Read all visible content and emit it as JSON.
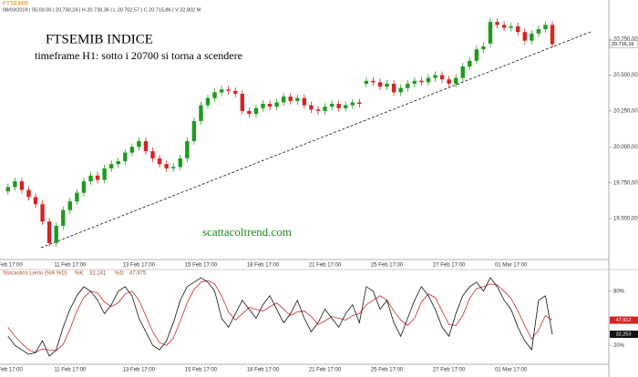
{
  "header": {
    "symbol": "FTSEMIB",
    "info": "08/03/2019 | 05:00.00 | 20.730,24 | H 20.738,36 | L 20.702,57 | C 20.715,86 | V 32,802 M"
  },
  "chart_data": [
    {
      "type": "candlestick",
      "title": "FTSEMIB INDICE",
      "subtitle": "timeframe H1: sotto i 20700 si torna a scendere",
      "watermark": "scattacoltrend.com",
      "categories": [
        "8 Feb 17:00",
        null,
        null,
        null,
        null,
        null,
        null,
        null,
        null,
        "11 Feb 17:00",
        null,
        null,
        null,
        null,
        null,
        null,
        null,
        null,
        null,
        "13 Feb 17:00",
        null,
        null,
        null,
        null,
        null,
        null,
        null,
        null,
        "15 Feb 17:00",
        null,
        null,
        null,
        null,
        null,
        null,
        null,
        null,
        "18 Feb 17:00",
        null,
        null,
        null,
        null,
        null,
        null,
        null,
        null,
        "21 Feb 17:00",
        null,
        null,
        null,
        null,
        null,
        null,
        null,
        null,
        "25 Feb 17:00",
        null,
        null,
        null,
        null,
        null,
        null,
        null,
        null,
        "27 Feb 17:00",
        null,
        null,
        null,
        null,
        null,
        null,
        null,
        null,
        "01 Mar 17:00",
        null,
        null,
        null,
        null,
        null,
        null
      ],
      "open": [
        19690,
        19720,
        19760,
        19700,
        19650,
        19600,
        19480,
        19330,
        19450,
        19560,
        19620,
        19680,
        19760,
        19800,
        19770,
        19850,
        19880,
        19900,
        19960,
        20000,
        20040,
        19970,
        19920,
        19880,
        19850,
        19860,
        19920,
        20040,
        20180,
        20290,
        20340,
        20380,
        20400,
        20390,
        20370,
        20250,
        20230,
        20270,
        20300,
        20280,
        20310,
        20350,
        20320,
        20340,
        20290,
        20260,
        20250,
        20280,
        20300,
        20270,
        20290,
        20310,
        20440,
        20460,
        20450,
        20420,
        20440,
        20380,
        20410,
        20440,
        20460,
        20450,
        20480,
        20500,
        20470,
        20440,
        20480,
        20560,
        20600,
        20680,
        20720,
        20870,
        20850,
        20830,
        20840,
        20800,
        20740,
        20790,
        20820,
        20850
      ],
      "high": [
        19745,
        19785,
        19785,
        19725,
        19675,
        19625,
        19505,
        19475,
        19585,
        19645,
        19705,
        19785,
        19825,
        19825,
        19875,
        19905,
        19925,
        19985,
        20025,
        20065,
        20065,
        19995,
        19945,
        19905,
        19885,
        19945,
        20065,
        20205,
        20315,
        20365,
        20405,
        20425,
        20425,
        20415,
        20395,
        20275,
        20295,
        20325,
        20325,
        20335,
        20375,
        20375,
        20365,
        20365,
        20315,
        20285,
        20305,
        20325,
        20325,
        20315,
        20335,
        20335,
        20485,
        20485,
        20475,
        20465,
        20465,
        20435,
        20465,
        20485,
        20485,
        20505,
        20525,
        20525,
        20495,
        20505,
        20585,
        20625,
        20705,
        20725,
        20895,
        20895,
        20875,
        20865,
        20865,
        20825,
        20815,
        20845,
        20875,
        20875
      ],
      "low": [
        19665,
        19695,
        19675,
        19625,
        19575,
        19455,
        19305,
        19305,
        19425,
        19535,
        19595,
        19655,
        19735,
        19745,
        19745,
        19825,
        19855,
        19875,
        19935,
        19975,
        19945,
        19895,
        19855,
        19825,
        19825,
        19835,
        19895,
        20015,
        20155,
        20265,
        20315,
        20355,
        20365,
        20345,
        20225,
        20205,
        20205,
        20245,
        20255,
        20255,
        20285,
        20295,
        20295,
        20265,
        20235,
        20225,
        20225,
        20255,
        20245,
        20245,
        20265,
        20275,
        20415,
        20425,
        20395,
        20395,
        20355,
        20355,
        20385,
        20415,
        20425,
        20425,
        20455,
        20445,
        20415,
        20415,
        20455,
        20535,
        20575,
        20655,
        20695,
        20825,
        20805,
        20805,
        20775,
        20715,
        20715,
        20765,
        20795,
        20691
      ],
      "close": [
        19720,
        19760,
        19700,
        19650,
        19600,
        19480,
        19330,
        19450,
        19560,
        19620,
        19680,
        19760,
        19800,
        19770,
        19850,
        19880,
        19900,
        19960,
        20000,
        20040,
        19970,
        19920,
        19880,
        19850,
        19860,
        19920,
        20040,
        20180,
        20290,
        20340,
        20380,
        20400,
        20390,
        20370,
        20250,
        20230,
        20270,
        20300,
        20280,
        20310,
        20350,
        20320,
        20340,
        20290,
        20260,
        20250,
        20280,
        20300,
        20270,
        20290,
        20310,
        20300,
        20460,
        20450,
        20420,
        20440,
        20380,
        20410,
        20440,
        20460,
        20450,
        20480,
        20500,
        20470,
        20440,
        20480,
        20560,
        20600,
        20680,
        20700,
        20870,
        20850,
        20830,
        20840,
        20800,
        20740,
        20790,
        20820,
        20850,
        20716
      ],
      "up_color": "#1f9a1f",
      "down_color": "#d42424",
      "ylim": [
        19215,
        20960
      ],
      "yticks": [
        {
          "value": 19500,
          "label": "19.500,00"
        },
        {
          "value": 19750,
          "label": "19.750,00"
        },
        {
          "value": 20000,
          "label": "20.000,00"
        },
        {
          "value": 20250,
          "label": "20.250,00"
        },
        {
          "value": 20500,
          "label": "20.500,00"
        },
        {
          "value": 20750,
          "label": "20.750,00"
        }
      ],
      "last_price": {
        "value": 20716.16,
        "label": "20.716,16"
      }
    },
    {
      "type": "line",
      "title": "Stocastico Lento (%K %D)",
      "series": [
        {
          "name": "%K",
          "legend_value": "32,141",
          "color": "#111111",
          "last": {
            "value": 32.253,
            "label": "32,253"
          },
          "values": [
            30,
            20,
            15,
            10,
            12,
            25,
            8,
            15,
            40,
            60,
            75,
            85,
            80,
            70,
            55,
            65,
            80,
            85,
            75,
            50,
            35,
            20,
            15,
            25,
            45,
            70,
            85,
            90,
            95,
            90,
            80,
            50,
            40,
            55,
            70,
            60,
            50,
            65,
            75,
            60,
            45,
            55,
            70,
            50,
            35,
            45,
            60,
            50,
            40,
            55,
            65,
            45,
            85,
            80,
            60,
            70,
            45,
            30,
            50,
            70,
            85,
            75,
            60,
            40,
            30,
            55,
            75,
            85,
            90,
            80,
            95,
            85,
            70,
            60,
            40,
            25,
            15,
            70,
            75,
            32
          ]
        },
        {
          "name": "%D",
          "legend_value": "47,875",
          "color": "#d42424",
          "last": {
            "value": 47.912,
            "label": "47,912"
          },
          "values": [
            40,
            30,
            22,
            15,
            12,
            16,
            15,
            14,
            21,
            38,
            58,
            73,
            80,
            78,
            68,
            63,
            67,
            77,
            80,
            70,
            53,
            35,
            23,
            20,
            28,
            47,
            67,
            82,
            90,
            92,
            88,
            75,
            57,
            48,
            55,
            62,
            60,
            58,
            63,
            67,
            60,
            53,
            57,
            58,
            52,
            43,
            47,
            52,
            50,
            48,
            53,
            55,
            65,
            70,
            75,
            70,
            58,
            48,
            42,
            50,
            68,
            77,
            73,
            58,
            43,
            42,
            53,
            72,
            83,
            85,
            88,
            87,
            80,
            72,
            58,
            42,
            27,
            37,
            53,
            48
          ]
        }
      ],
      "ylim": [
        0,
        100
      ],
      "yticks": [
        {
          "value": 20,
          "label": "20%"
        },
        {
          "value": 80,
          "label": "80%"
        }
      ]
    }
  ]
}
